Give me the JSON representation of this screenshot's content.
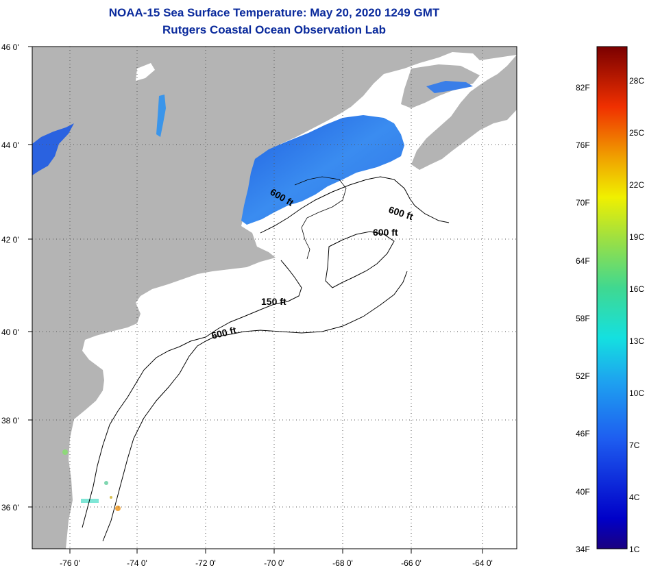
{
  "header": {
    "title": "NOAA-15 Sea Surface Temperature:  May 20, 2020 1249 GMT",
    "subtitle": "Rutgers Coastal Ocean Observation Lab"
  },
  "map": {
    "lat_labels": [
      "46 0'",
      "44 0'",
      "42 0'",
      "40 0'",
      "38 0'",
      "36 0'"
    ],
    "lon_labels": [
      "-76 0'",
      "-74 0'",
      "-72 0'",
      "-70 0'",
      "-68 0'",
      "-66 0'",
      "-64 0'"
    ],
    "contour_labels": [
      "600 ft",
      "600 ft",
      "600 ft",
      "150 ft",
      "600 ft"
    ],
    "colors": {
      "land": "#b4b4b4",
      "ocean": "#ffffff",
      "cold_water": "#2f7de8",
      "contour": "#000000"
    }
  },
  "colorbar": {
    "fahrenheit_labels": [
      "82F",
      "76F",
      "70F",
      "64F",
      "58F",
      "52F",
      "46F",
      "40F",
      "34F"
    ],
    "celsius_labels": [
      "28C",
      "25C",
      "22C",
      "19C",
      "16C",
      "13C",
      "10C",
      "7C",
      "4C",
      "1C"
    ]
  }
}
